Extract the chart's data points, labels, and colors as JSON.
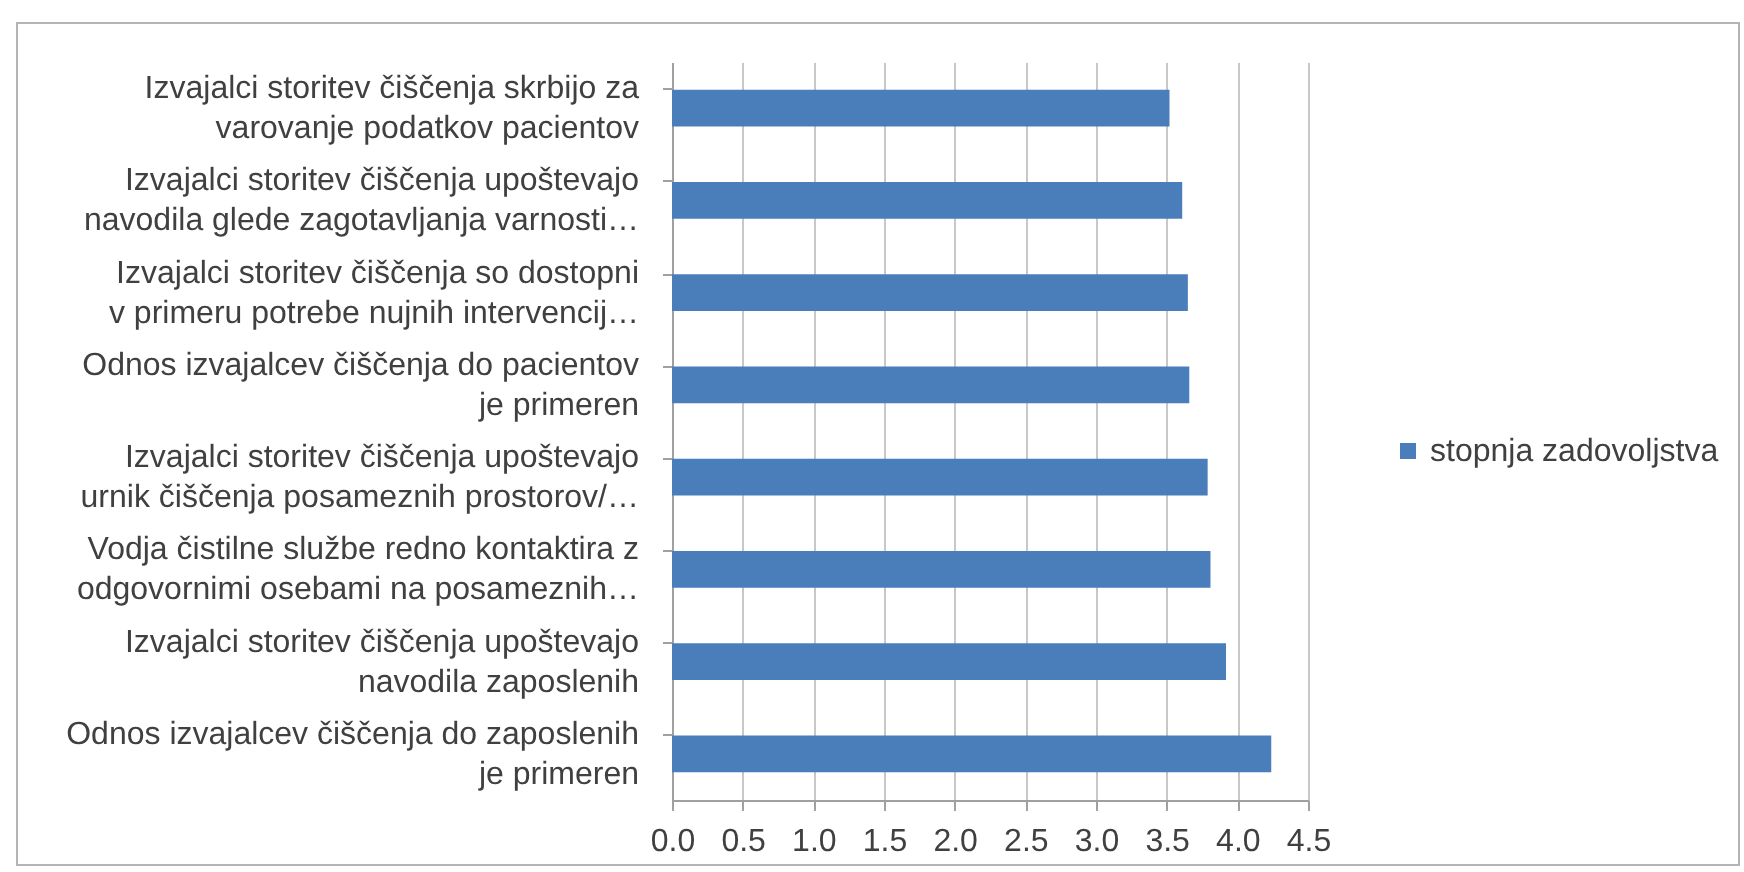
{
  "chart_data": {
    "type": "bar",
    "orientation": "horizontal",
    "categories": [
      "Izvajalci storitev čiščenja skrbijo za varovanje podatkov pacientov",
      "Izvajalci storitev čiščenja upoštevajo navodila glede zagotavljanja varnosti…",
      "Izvajalci storitev čiščenja so dostopni v primeru potrebe nujnih intervencij…",
      "Odnos izvajalcev čiščenja do pacientov je primeren",
      "Izvajalci storitev čiščenja upoštevajo urnik čiščenja posameznih prostorov/…",
      "Vodja čistilne službe redno kontaktira z odgovornimi osebami na posameznih…",
      "Izvajalci storitev čiščenja upoštevajo navodila zaposlenih",
      "Odnos izvajalcev čiščenja do zaposlenih je primeren"
    ],
    "series": [
      {
        "name": "stopnja zadovoljstva",
        "color": "#4a7ebb",
        "values": [
          3.52,
          3.61,
          3.65,
          3.66,
          3.79,
          3.81,
          3.92,
          4.24
        ]
      }
    ],
    "xlim": [
      0,
      4.5
    ],
    "xticks": [
      {
        "value": 0,
        "label": "0.0"
      },
      0.5,
      {
        "value": 1,
        "label": "1.0"
      },
      1.5,
      {
        "value": 2,
        "label": "2.0"
      },
      2.5,
      {
        "value": 3,
        "label": "3.0"
      },
      3.5,
      {
        "value": 4,
        "label": "4.0"
      },
      4.5
    ],
    "grid": "x",
    "legend": "right"
  }
}
